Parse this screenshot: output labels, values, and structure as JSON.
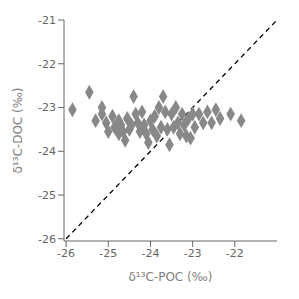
{
  "chart_data": {
    "type": "scatter",
    "x_label": "δ¹³C-POC (‰)",
    "y_label": "δ¹³C-DOC (‰)",
    "xlim": [
      -26.05,
      -21.0
    ],
    "ylim": [
      -26.05,
      -21.0
    ],
    "xticks": [
      -26,
      -25,
      -24,
      -23,
      -22
    ],
    "yticks": [
      -26,
      -25,
      -24,
      -23,
      -22,
      -21
    ],
    "grid": false,
    "series": [
      {
        "type": "line",
        "line_style": "dashed",
        "color": "#000000",
        "x": [
          -26,
          -21
        ],
        "values": [
          -26,
          -21
        ]
      },
      {
        "type": "scatter",
        "marker": "diamond",
        "color": "#888888",
        "x": [
          -25.85,
          -25.45,
          -25.3,
          -25.15,
          -25.15,
          -25.05,
          -25.0,
          -24.9,
          -24.85,
          -24.75,
          -24.75,
          -24.7,
          -24.65,
          -24.6,
          -24.55,
          -24.5,
          -24.45,
          -24.4,
          -24.35,
          -24.3,
          -24.25,
          -24.2,
          -24.15,
          -24.1,
          -24.05,
          -24.0,
          -23.95,
          -23.9,
          -23.85,
          -23.8,
          -23.75,
          -23.7,
          -23.65,
          -23.6,
          -23.55,
          -23.5,
          -23.45,
          -23.4,
          -23.35,
          -23.3,
          -23.25,
          -23.2,
          -23.15,
          -23.1,
          -23.05,
          -23.0,
          -22.95,
          -22.85,
          -22.75,
          -22.65,
          -22.55,
          -22.45,
          -22.35,
          -22.1,
          -21.85
        ],
        "values": [
          -23.05,
          -22.65,
          -23.3,
          -23.0,
          -23.15,
          -23.35,
          -23.55,
          -23.2,
          -23.45,
          -23.3,
          -23.6,
          -23.4,
          -23.55,
          -23.75,
          -23.25,
          -23.5,
          -23.4,
          -22.75,
          -23.15,
          -23.35,
          -23.55,
          -23.1,
          -23.4,
          -23.6,
          -23.8,
          -23.3,
          -23.5,
          -23.2,
          -23.65,
          -23.0,
          -23.45,
          -22.75,
          -23.1,
          -23.5,
          -23.85,
          -23.15,
          -23.45,
          -23.0,
          -23.35,
          -23.6,
          -23.15,
          -23.4,
          -23.65,
          -23.25,
          -23.7,
          -23.15,
          -23.45,
          -23.15,
          -23.35,
          -23.1,
          -23.35,
          -23.05,
          -23.25,
          -23.15,
          -23.3
        ]
      }
    ]
  }
}
